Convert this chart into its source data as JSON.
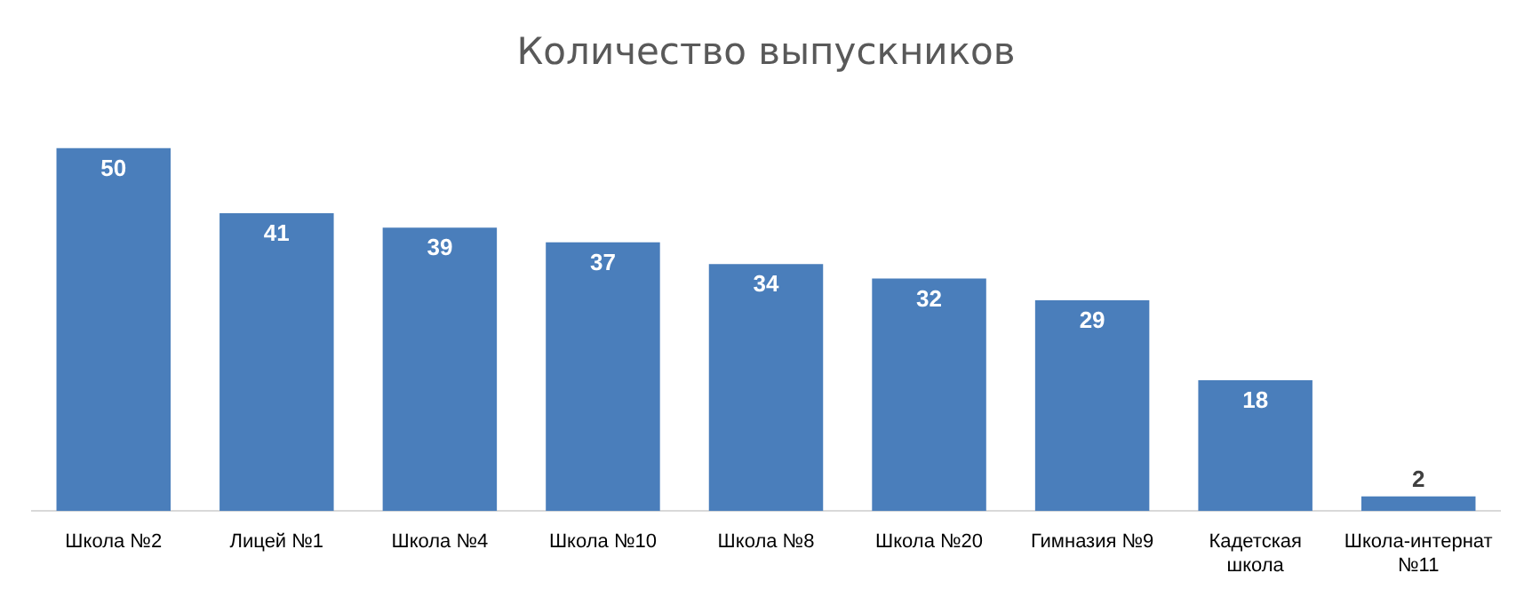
{
  "chart_data": {
    "type": "bar",
    "title": "Количество выпускников",
    "categories": [
      "Школа №2",
      "Лицей №1",
      "Школа №4",
      "Школа №10",
      "Школа №8",
      "Школа №20",
      "Гимназия №9",
      "Кадетская школа",
      "Школа-интернат №11"
    ],
    "values": [
      50,
      41,
      39,
      37,
      34,
      32,
      29,
      18,
      2
    ],
    "color": "#4a7ebb",
    "data_labels": true,
    "grid": false,
    "legend": false
  }
}
